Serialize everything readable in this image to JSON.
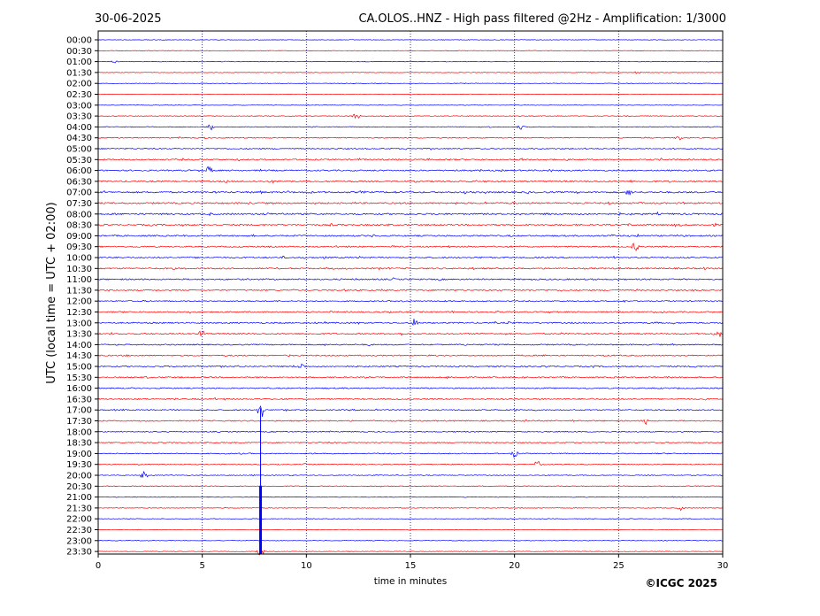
{
  "header": {
    "date": "30-06-2025",
    "title": "CA.OLOS..HNZ - High pass filtered @2Hz - Amplification: 1/3000"
  },
  "footer": {
    "copyright": "©ICGC 2025"
  },
  "colors": {
    "trace_red": "#ff0000",
    "trace_blue": "#0000ff",
    "gridline": "#000080"
  },
  "chart_data": {
    "type": "line",
    "title": "CA.OLOS..HNZ - High pass filtered @2Hz - Amplification: 1/3000",
    "xlabel": "time in minutes",
    "ylabel": "UTC (local time = UTC + 02:00)",
    "xlim": [
      0,
      30
    ],
    "x_ticks": [
      "0",
      "5",
      "10",
      "15",
      "20",
      "25",
      "30"
    ],
    "grid": "vertical dotted at 5, 10, 15, 20, 25",
    "row_times": [
      "00:00",
      "00:30",
      "01:00",
      "01:30",
      "02:00",
      "02:30",
      "03:00",
      "03:30",
      "04:00",
      "04:30",
      "05:00",
      "05:30",
      "06:00",
      "06:30",
      "07:00",
      "07:30",
      "08:00",
      "08:30",
      "09:00",
      "09:30",
      "10:00",
      "10:30",
      "11:00",
      "11:30",
      "12:00",
      "12:30",
      "13:00",
      "13:30",
      "14:00",
      "14:30",
      "15:00",
      "15:30",
      "16:00",
      "16:30",
      "17:00",
      "17:30",
      "18:00",
      "18:30",
      "19:00",
      "19:30",
      "20:00",
      "20:30",
      "21:00",
      "21:30",
      "22:00",
      "22:30",
      "23:00",
      "23:30"
    ],
    "row_colors": [
      "blue",
      "red"
    ],
    "activity_level": [
      0.05,
      0.05,
      0.1,
      0.1,
      0.05,
      0.05,
      0.05,
      0.15,
      0.2,
      0.35,
      0.45,
      0.6,
      0.6,
      0.65,
      0.75,
      0.7,
      0.75,
      0.7,
      0.65,
      0.55,
      0.6,
      0.6,
      0.6,
      0.55,
      0.5,
      0.55,
      0.6,
      0.55,
      0.5,
      0.5,
      0.55,
      0.55,
      0.5,
      0.5,
      0.45,
      0.45,
      0.4,
      0.4,
      0.35,
      0.3,
      0.25,
      0.2,
      0.15,
      0.12,
      0.1,
      0.1,
      0.08,
      0.08
    ],
    "events": [
      {
        "row": "01:00",
        "minute": 0.8,
        "amplitude": 0.3
      },
      {
        "row": "01:30",
        "minute": 25.9,
        "amplitude": 0.3
      },
      {
        "row": "03:30",
        "minute": 12.4,
        "amplitude": 0.8
      },
      {
        "row": "04:00",
        "minute": 5.4,
        "amplitude": 0.7
      },
      {
        "row": "04:00",
        "minute": 20.3,
        "amplitude": 0.5
      },
      {
        "row": "04:30",
        "minute": 27.9,
        "amplitude": 0.6
      },
      {
        "row": "06:00",
        "minute": 5.3,
        "amplitude": 0.9
      },
      {
        "row": "07:00",
        "minute": 25.5,
        "amplitude": 0.8
      },
      {
        "row": "09:30",
        "minute": 25.8,
        "amplitude": 1.0
      },
      {
        "row": "13:00",
        "minute": 15.2,
        "amplitude": 0.9
      },
      {
        "row": "13:30",
        "minute": 5.0,
        "amplitude": 0.9
      },
      {
        "row": "13:30",
        "minute": 29.8,
        "amplitude": 0.9
      },
      {
        "row": "15:00",
        "minute": 9.8,
        "amplitude": 0.8
      },
      {
        "row": "17:00",
        "minute": 7.8,
        "amplitude": 2.0
      },
      {
        "row": "17:30",
        "minute": 26.3,
        "amplitude": 0.7
      },
      {
        "row": "19:00",
        "minute": 20.0,
        "amplitude": 0.8
      },
      {
        "row": "19:30",
        "minute": 21.1,
        "amplitude": 0.8
      },
      {
        "row": "20:00",
        "minute": 2.2,
        "amplitude": 0.8
      },
      {
        "row": "21:30",
        "minute": 28.0,
        "amplitude": 0.5
      },
      {
        "row": "23:30",
        "minute": 7.8,
        "amplitude": 1.0
      }
    ],
    "long_disturbance": {
      "minute": 7.8,
      "from_row": "17:00",
      "to_row": "23:30"
    }
  }
}
